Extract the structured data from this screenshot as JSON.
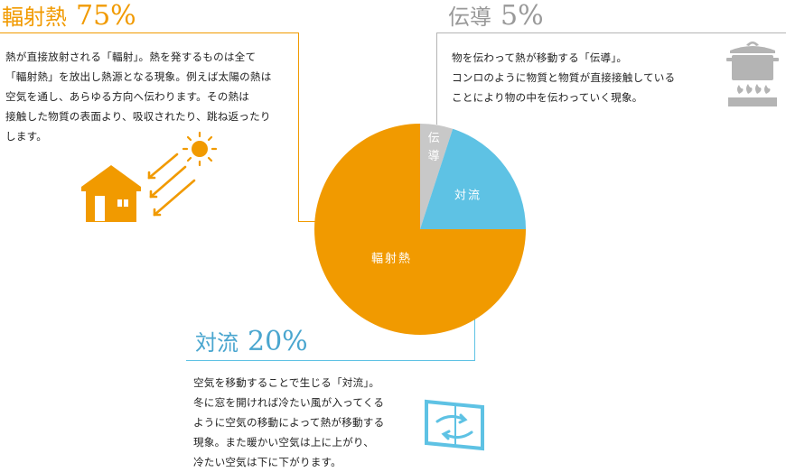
{
  "radiation": {
    "title": "輻射熱",
    "percent": "75%",
    "description": "熱が直接放射される「輻射」。熱を発するものは全て\n「輻射熱」を放出し熱源となる現象。例えば太陽の熱は\n空気を通し、あらゆる方向へ伝わります。その熱は\n接触した物質の表面より、吸収されたり、跳ね返ったり\nします。",
    "icon": "house-sun-icon",
    "color": "#f19a00"
  },
  "conduction": {
    "title": "伝導",
    "percent": "5%",
    "description": "物を伝わって熱が移動する「伝導」。\nコンロのように物質と物質が直接接触している\nことにより物の中を伝わっていく現象。",
    "icon": "stove-pot-icon",
    "color": "#c8c8c8"
  },
  "convection": {
    "title": "対流",
    "percent": "20%",
    "description": "空気を移動することで生じる「対流」。\n冬に窓を開ければ冷たい風が入ってくる\nように空気の移動によって熱が移動する\n現象。また暖かい空気は上に上がり、\n冷たい空気は下に下がります。",
    "icon": "window-airflow-icon",
    "color": "#5ec2e4"
  },
  "chart_data": {
    "type": "pie",
    "slices": [
      {
        "label": "伝導",
        "value": 5,
        "color": "#c8c8c8"
      },
      {
        "label": "対流",
        "value": 20,
        "color": "#5ec2e4"
      },
      {
        "label": "輻射熱",
        "value": 75,
        "color": "#f19a00"
      }
    ],
    "start": "12 o'clock",
    "direction": "clockwise"
  }
}
